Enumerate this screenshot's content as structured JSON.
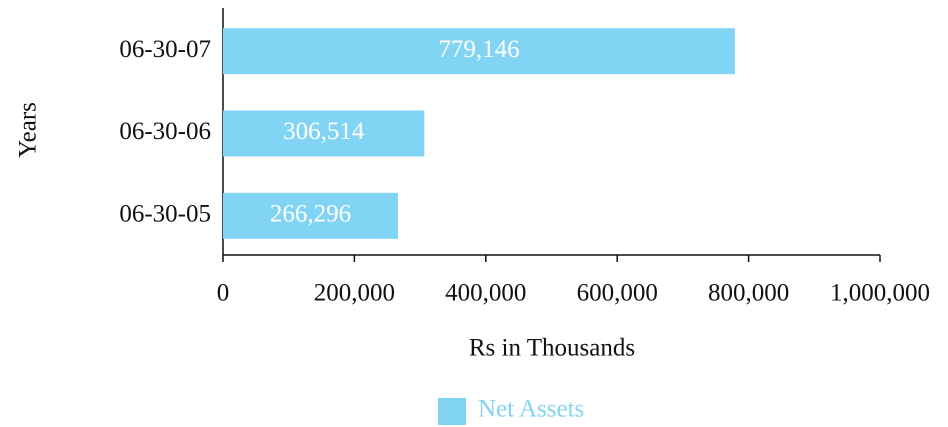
{
  "chart_data": {
    "type": "hbar",
    "categories": [
      "06-30-07",
      "06-30-06",
      "06-30-05"
    ],
    "series": [
      {
        "name": "Net Assets",
        "color": "#82d4f4",
        "values": [
          779146,
          306514,
          266296
        ],
        "value_labels": [
          "779,146",
          "306,514",
          "266,296"
        ]
      }
    ],
    "xlabel": "Rs in Thousands",
    "ylabel": "Years",
    "xlim": [
      0,
      1000000
    ],
    "xticks": [
      0,
      {
        "value": 200000,
        "label": "200,000"
      },
      {
        "value": 400000,
        "label": "400,000"
      },
      {
        "value": 600000,
        "label": "600,000"
      },
      {
        "value": 800000,
        "label": "800,000"
      },
      {
        "value": 1000000,
        "label": "1,000,000"
      }
    ],
    "legend": "bottom",
    "grid": false
  }
}
